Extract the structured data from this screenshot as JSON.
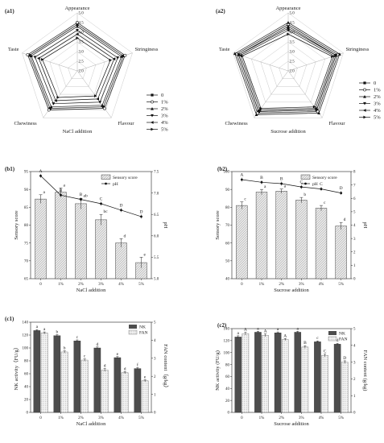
{
  "chart_data": [
    {
      "type": "radar",
      "panel_label": "(a1)",
      "axes": [
        "Appearance",
        "Stringiness",
        "Flavour",
        "NaCl addition",
        "Chewiness",
        "Taste"
      ],
      "categories": [
        "Appearance",
        "Stringiness",
        "Flavour",
        "Chewiness",
        "Taste"
      ],
      "radial_ticks": [
        "2.0",
        "2.5",
        "3.0",
        "3.5",
        "4.0",
        "4.5",
        "5.0"
      ],
      "rlim": [
        2.0,
        5.0
      ],
      "legend": [
        "0",
        "1%",
        "2%",
        "3%",
        "4%",
        "5%"
      ],
      "legend_placement": "right",
      "series": [
        {
          "name": "0",
          "values": [
            4.4,
            4.5,
            4.3,
            4.4,
            4.6
          ]
        },
        {
          "name": "1%",
          "values": [
            4.5,
            4.6,
            4.4,
            4.5,
            4.7
          ]
        },
        {
          "name": "2%",
          "values": [
            4.3,
            4.4,
            4.2,
            4.3,
            4.5
          ]
        },
        {
          "name": "3%",
          "values": [
            4.1,
            4.2,
            4.0,
            4.1,
            4.3
          ]
        },
        {
          "name": "4%",
          "values": [
            3.9,
            4.0,
            3.8,
            3.9,
            4.1
          ]
        },
        {
          "name": "5%",
          "values": [
            3.7,
            3.8,
            3.6,
            3.7,
            3.9
          ]
        }
      ]
    },
    {
      "type": "radar",
      "panel_label": "(a2)",
      "axes": [
        "Appearance",
        "Stringiness",
        "Flavour",
        "Sucrose addition",
        "Chewiness",
        "Taste"
      ],
      "categories": [
        "Appearance",
        "Stringiness",
        "Flavour",
        "Chewiness",
        "Taste"
      ],
      "radial_ticks": [
        "2.0",
        "2.5",
        "3.0",
        "3.5",
        "4.0",
        "4.5",
        "5.0"
      ],
      "rlim": [
        2.0,
        5.0
      ],
      "legend": [
        "0",
        "1%",
        "2%",
        "3%",
        "4%",
        "5%"
      ],
      "legend_placement": "right",
      "series": [
        {
          "name": "0",
          "values": [
            4.2,
            4.6,
            4.5,
            4.6,
            4.7
          ]
        },
        {
          "name": "1%",
          "values": [
            4.4,
            4.7,
            4.6,
            4.7,
            4.8
          ]
        },
        {
          "name": "2%",
          "values": [
            4.5,
            4.8,
            4.7,
            4.8,
            4.9
          ]
        },
        {
          "name": "3%",
          "values": [
            4.3,
            4.6,
            4.5,
            4.6,
            4.7
          ]
        },
        {
          "name": "4%",
          "values": [
            4.1,
            4.5,
            4.4,
            4.5,
            4.6
          ]
        },
        {
          "name": "5%",
          "values": [
            3.9,
            4.4,
            4.3,
            4.4,
            4.5
          ]
        }
      ]
    },
    {
      "type": "bar",
      "panel_label": "(b1)",
      "categories": [
        "0",
        "1%",
        "2%",
        "3%",
        "4%",
        "5%"
      ],
      "xlabel": "NaCl addition",
      "ylabel": "Sensory score",
      "y2label": "pH",
      "ylim": [
        65,
        95
      ],
      "yticks": [
        65,
        70,
        75,
        80,
        85,
        90,
        95
      ],
      "y2lim": [
        5.0,
        7.5
      ],
      "y2ticks": [
        "5.0",
        "5.5",
        "6.0",
        "6.5",
        "7.0",
        "7.5"
      ],
      "legend_placement": "top-right",
      "series": [
        {
          "name": "Sensory score",
          "kind": "bar",
          "values": [
            87.3,
            89.2,
            86.0,
            81.5,
            75.0,
            69.5
          ],
          "errors": [
            1.2,
            1.2,
            1.5,
            1.5,
            1.2,
            1.5
          ],
          "letters": [
            "a",
            "a",
            "ab",
            "bc",
            "d",
            "e"
          ]
        },
        {
          "name": "pH",
          "kind": "line",
          "axis": "y2",
          "values": [
            7.4,
            6.95,
            6.85,
            6.75,
            6.6,
            6.45
          ],
          "letters": [
            "A",
            "B",
            "B",
            "C",
            "D",
            "D"
          ]
        }
      ]
    },
    {
      "type": "bar",
      "panel_label": "(b2)",
      "categories": [
        "0",
        "1%",
        "2%",
        "3%",
        "4%",
        "5%"
      ],
      "xlabel": "Sucrose addition",
      "ylabel": "Sensory score",
      "y2label": "pH",
      "ylim": [
        40,
        100
      ],
      "yticks": [
        40,
        50,
        60,
        70,
        80,
        90,
        100
      ],
      "y2lim": [
        0,
        8
      ],
      "y2ticks": [
        "0",
        "1",
        "2",
        "3",
        "4",
        "5",
        "6",
        "7",
        "8"
      ],
      "legend_placement": "top-right",
      "series": [
        {
          "name": "Sensory score",
          "kind": "bar",
          "values": [
            81.0,
            88.5,
            89.0,
            84.0,
            79.5,
            69.5
          ],
          "errors": [
            2.0,
            1.5,
            1.2,
            1.5,
            1.5,
            2.0
          ],
          "letters": [
            "c",
            "a",
            "a",
            "b",
            "c",
            "d"
          ]
        },
        {
          "name": "pH",
          "kind": "line",
          "axis": "y2",
          "values": [
            7.4,
            7.2,
            7.1,
            6.85,
            6.7,
            6.4
          ],
          "letters": [
            "A",
            "B",
            "B",
            "C",
            "C",
            "D"
          ]
        }
      ]
    },
    {
      "type": "bar",
      "panel_label": "(c1)",
      "categories": [
        "0",
        "1%",
        "2%",
        "3%",
        "4%",
        "5%"
      ],
      "xlabel": "NaCl addition",
      "ylabel": "NK activity（FU/g）",
      "y2label": "FAN content（g/kg）",
      "ylim": [
        0,
        140
      ],
      "yticks": [
        0,
        20,
        40,
        60,
        80,
        100,
        120,
        140
      ],
      "y2lim": [
        0,
        5
      ],
      "y2ticks": [
        "0",
        "1",
        "2",
        "3",
        "4",
        "5"
      ],
      "legend_placement": "top-right",
      "series": [
        {
          "name": "NK",
          "values": [
            127,
            119,
            111,
            100,
            85,
            68
          ],
          "errors": [
            1.5,
            1.5,
            1.5,
            1.5,
            1.5,
            1.5
          ],
          "letters": [
            "a",
            "b",
            "c",
            "d",
            "e",
            "f"
          ]
        },
        {
          "name": "FAN",
          "axis": "y2",
          "values": [
            4.4,
            3.35,
            2.9,
            2.35,
            2.2,
            1.75
          ],
          "errors": [
            0.06,
            0.06,
            0.06,
            0.08,
            0.06,
            0.06
          ],
          "letters": [
            "a",
            "b",
            "c",
            "d",
            "d",
            "e"
          ]
        }
      ]
    },
    {
      "type": "bar",
      "panel_label": "(c2)",
      "categories": [
        "0",
        "1%",
        "2%",
        "3%",
        "4%",
        "5%"
      ],
      "xlabel": "Sucrose addition",
      "ylabel": "NK activity (FU/g)",
      "y2label": "FAN content (g/kg)",
      "ylim": [
        0,
        140
      ],
      "yticks": [
        0,
        20,
        40,
        60,
        80,
        100,
        120,
        140
      ],
      "y2lim": [
        0,
        5
      ],
      "y2ticks": [
        "0",
        "1",
        "2",
        "3",
        "4",
        "5"
      ],
      "legend_placement": "top-right",
      "series": [
        {
          "name": "NK",
          "values": [
            126,
            134,
            133,
            134,
            118,
            114
          ],
          "errors": [
            2.0,
            1.5,
            1.5,
            1.5,
            1.5,
            1.5
          ],
          "letters": [
            "a",
            "a",
            "a",
            "a",
            "c",
            "d"
          ]
        },
        {
          "name": "FAN",
          "axis": "y2",
          "values": [
            4.7,
            4.6,
            4.35,
            3.9,
            3.4,
            3.0
          ],
          "errors": [
            0.08,
            0.08,
            0.06,
            0.08,
            0.08,
            0.08
          ],
          "letters": [
            "A",
            "A",
            "A",
            "B",
            "C",
            "D"
          ]
        }
      ]
    }
  ]
}
